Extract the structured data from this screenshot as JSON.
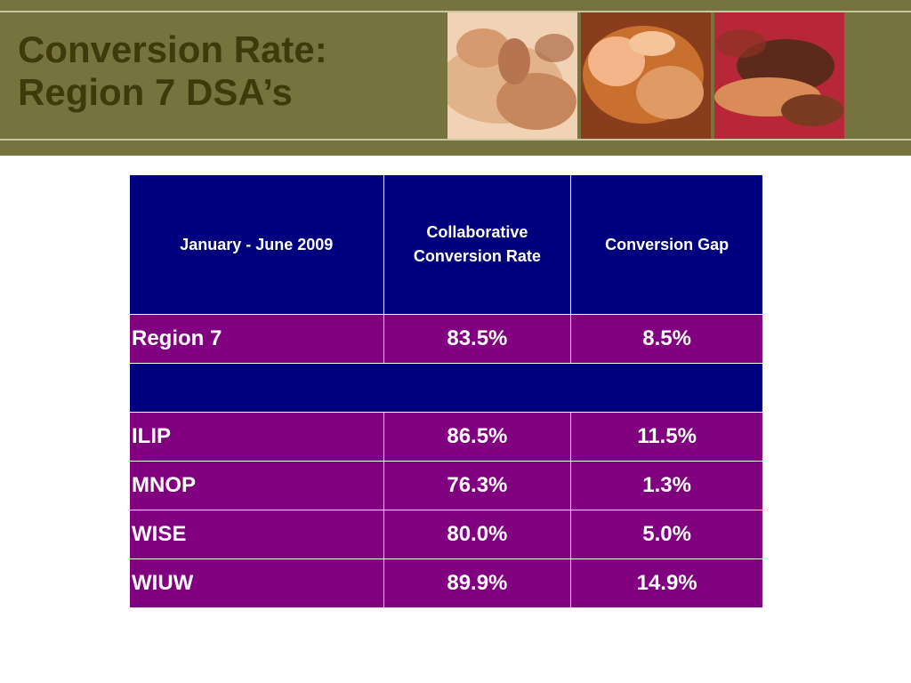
{
  "slide": {
    "title_line1": "Conversion Rate:",
    "title_line2": "Region 7 DSA’s"
  },
  "images": [
    {
      "name": "hands-photo-1",
      "colors": [
        "#d59a6e",
        "#a05a36",
        "#f1d2b4"
      ]
    },
    {
      "name": "hands-photo-2",
      "colors": [
        "#c9702e",
        "#8a3d1c",
        "#f2b488"
      ]
    },
    {
      "name": "hands-photo-3",
      "colors": [
        "#b82737",
        "#5c2a1c",
        "#d98c58"
      ]
    }
  ],
  "table": {
    "header": {
      "period": "January - June 2009",
      "col2": "Collaborative Conversion Rate",
      "col3": "Conversion Gap"
    },
    "rows": [
      {
        "name": "Region 7",
        "rate": "83.5%",
        "gap": "8.5%"
      },
      {
        "name": "ILIP",
        "rate": "86.5%",
        "gap": "11.5%"
      },
      {
        "name": "MNOP",
        "rate": "76.3%",
        "gap": "1.3%"
      },
      {
        "name": "WISE",
        "rate": "80.0%",
        "gap": "5.0%"
      },
      {
        "name": "WIUW",
        "rate": "89.9%",
        "gap": "14.9%"
      }
    ]
  },
  "colors": {
    "banner": "#77733f",
    "title": "#3f3a0c",
    "header_bg": "#00007f",
    "row_bg": "#800080"
  }
}
